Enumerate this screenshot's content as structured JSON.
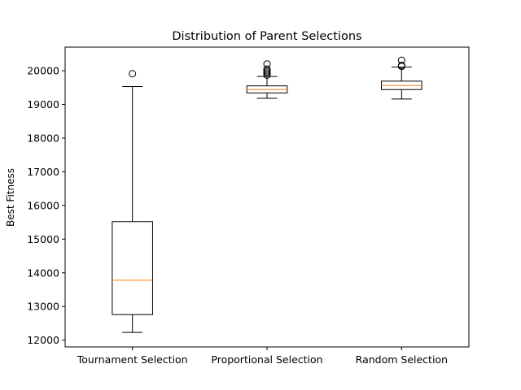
{
  "chart_data": {
    "type": "box",
    "title": "Distribution of Parent Selections",
    "xlabel": "",
    "ylabel": "Best Fitness",
    "ylim": [
      11800,
      20700
    ],
    "yticks": [
      12000,
      13000,
      14000,
      15000,
      16000,
      17000,
      18000,
      19000,
      20000
    ],
    "ytick_labels": [
      "12000",
      "13000",
      "14000",
      "15000",
      "16000",
      "17000",
      "18000",
      "19000",
      "20000"
    ],
    "grid": false,
    "colors": {
      "box": "#000000",
      "median": "#ff7f0e",
      "flier": "#000000"
    },
    "categories": [
      "Tournament Selection",
      "Proportional Selection",
      "Random Selection"
    ],
    "boxes": [
      {
        "whisker_low": 12230,
        "q1": 12760,
        "median": 13780,
        "q3": 15520,
        "whisker_high": 19530,
        "fliers": [
          19910
        ]
      },
      {
        "whisker_low": 19180,
        "q1": 19340,
        "median": 19440,
        "q3": 19550,
        "whisker_high": 19830,
        "fliers": [
          19870,
          19920,
          19960,
          20000,
          20050,
          20200
        ]
      },
      {
        "whisker_low": 19160,
        "q1": 19440,
        "median": 19560,
        "q3": 19690,
        "whisker_high": 20110,
        "fliers": [
          20130,
          20160,
          20310
        ]
      }
    ]
  }
}
